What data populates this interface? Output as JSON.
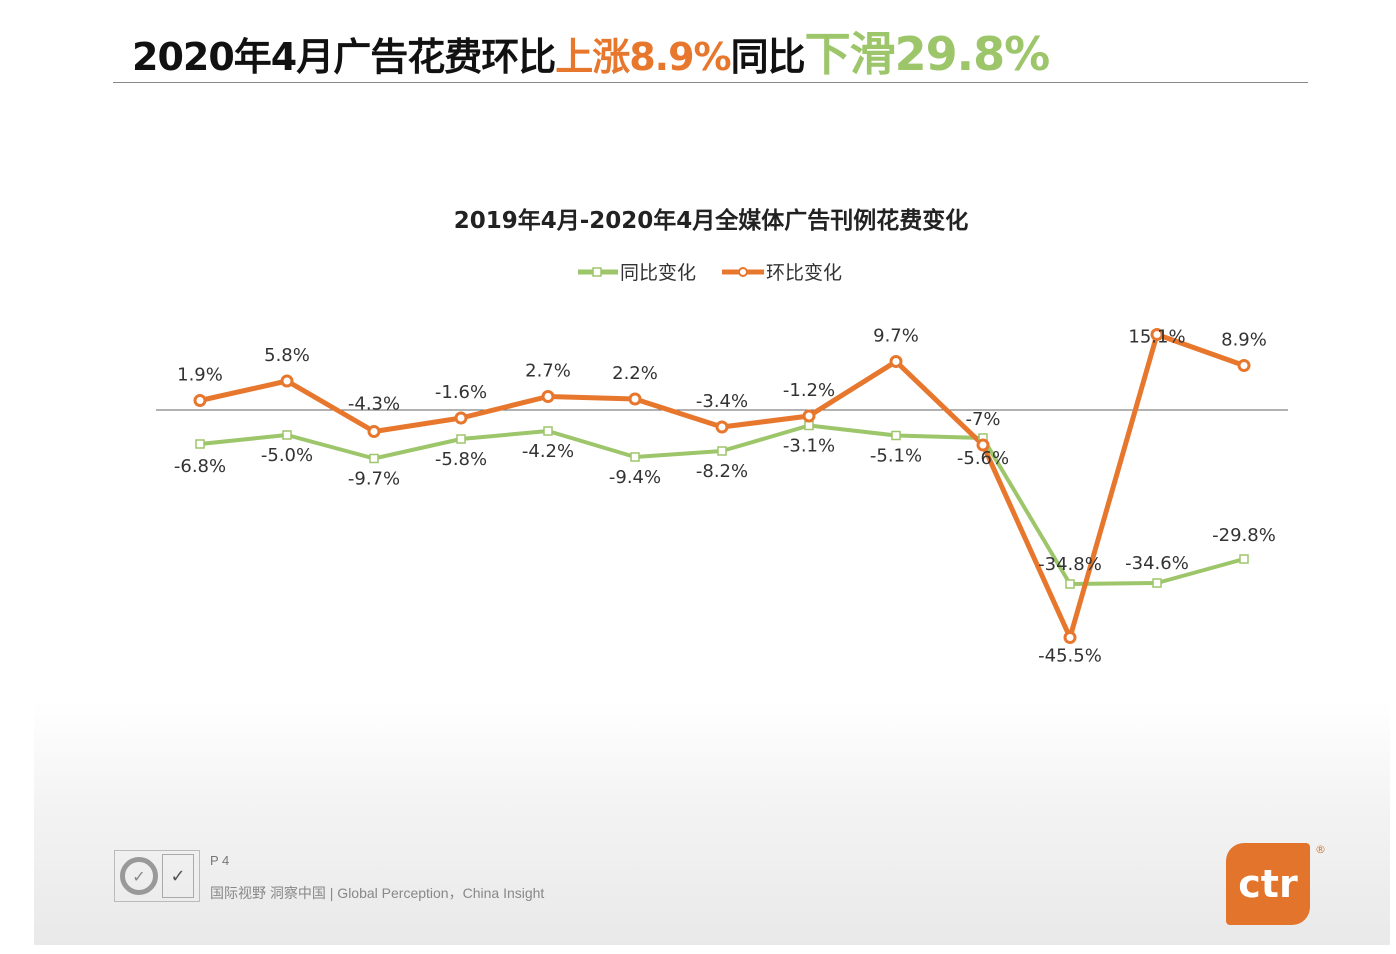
{
  "header": {
    "title_prefix": "2020年4月广告花费环比",
    "title_up": "上涨8.9%",
    "title_mid": "同比",
    "title_down": "下滑29.8%"
  },
  "chart_data": {
    "type": "line",
    "title": "2019年4月-2020年4月全媒体广告刊例花费变化",
    "legend_position": "top",
    "grid": false,
    "ylim": [
      -50,
      20
    ],
    "series": [
      {
        "name": "同比变化",
        "color": "#9dc56a",
        "values": [
          -6.8,
          -5.0,
          -9.7,
          -5.8,
          -4.2,
          -9.4,
          -8.2,
          -3.1,
          -5.1,
          -5.6,
          -34.8,
          -34.6,
          -29.8
        ],
        "labels": [
          "-6.8%",
          "-5.0%",
          "-9.7%",
          "-5.8%",
          "-4.2%",
          "-9.4%",
          "-8.2%",
          "-3.1%",
          "-5.1%",
          "-5.6%",
          "-34.8%",
          "-34.6%",
          "-29.8%"
        ]
      },
      {
        "name": "环比变化",
        "color": "#e8772e",
        "values": [
          1.9,
          5.8,
          -4.3,
          -1.6,
          2.7,
          2.2,
          -3.4,
          -1.2,
          9.7,
          -7,
          -45.5,
          15.1,
          8.9
        ],
        "labels": [
          "1.9%",
          "5.8%",
          "-4.3%",
          "-1.6%",
          "2.7%",
          "2.2%",
          "-3.4%",
          "-1.2%",
          "9.7%",
          "-7%",
          "-45.5%",
          "15.1%",
          "8.9%"
        ]
      }
    ]
  },
  "footer": {
    "page": "P 4",
    "tagline": "国际视野  洞察中国 |  Global Perception，China Insight",
    "logo_sgs": "SGS",
    "logo_ukas": "UKAS",
    "brand": "ctr",
    "registered": "®"
  }
}
